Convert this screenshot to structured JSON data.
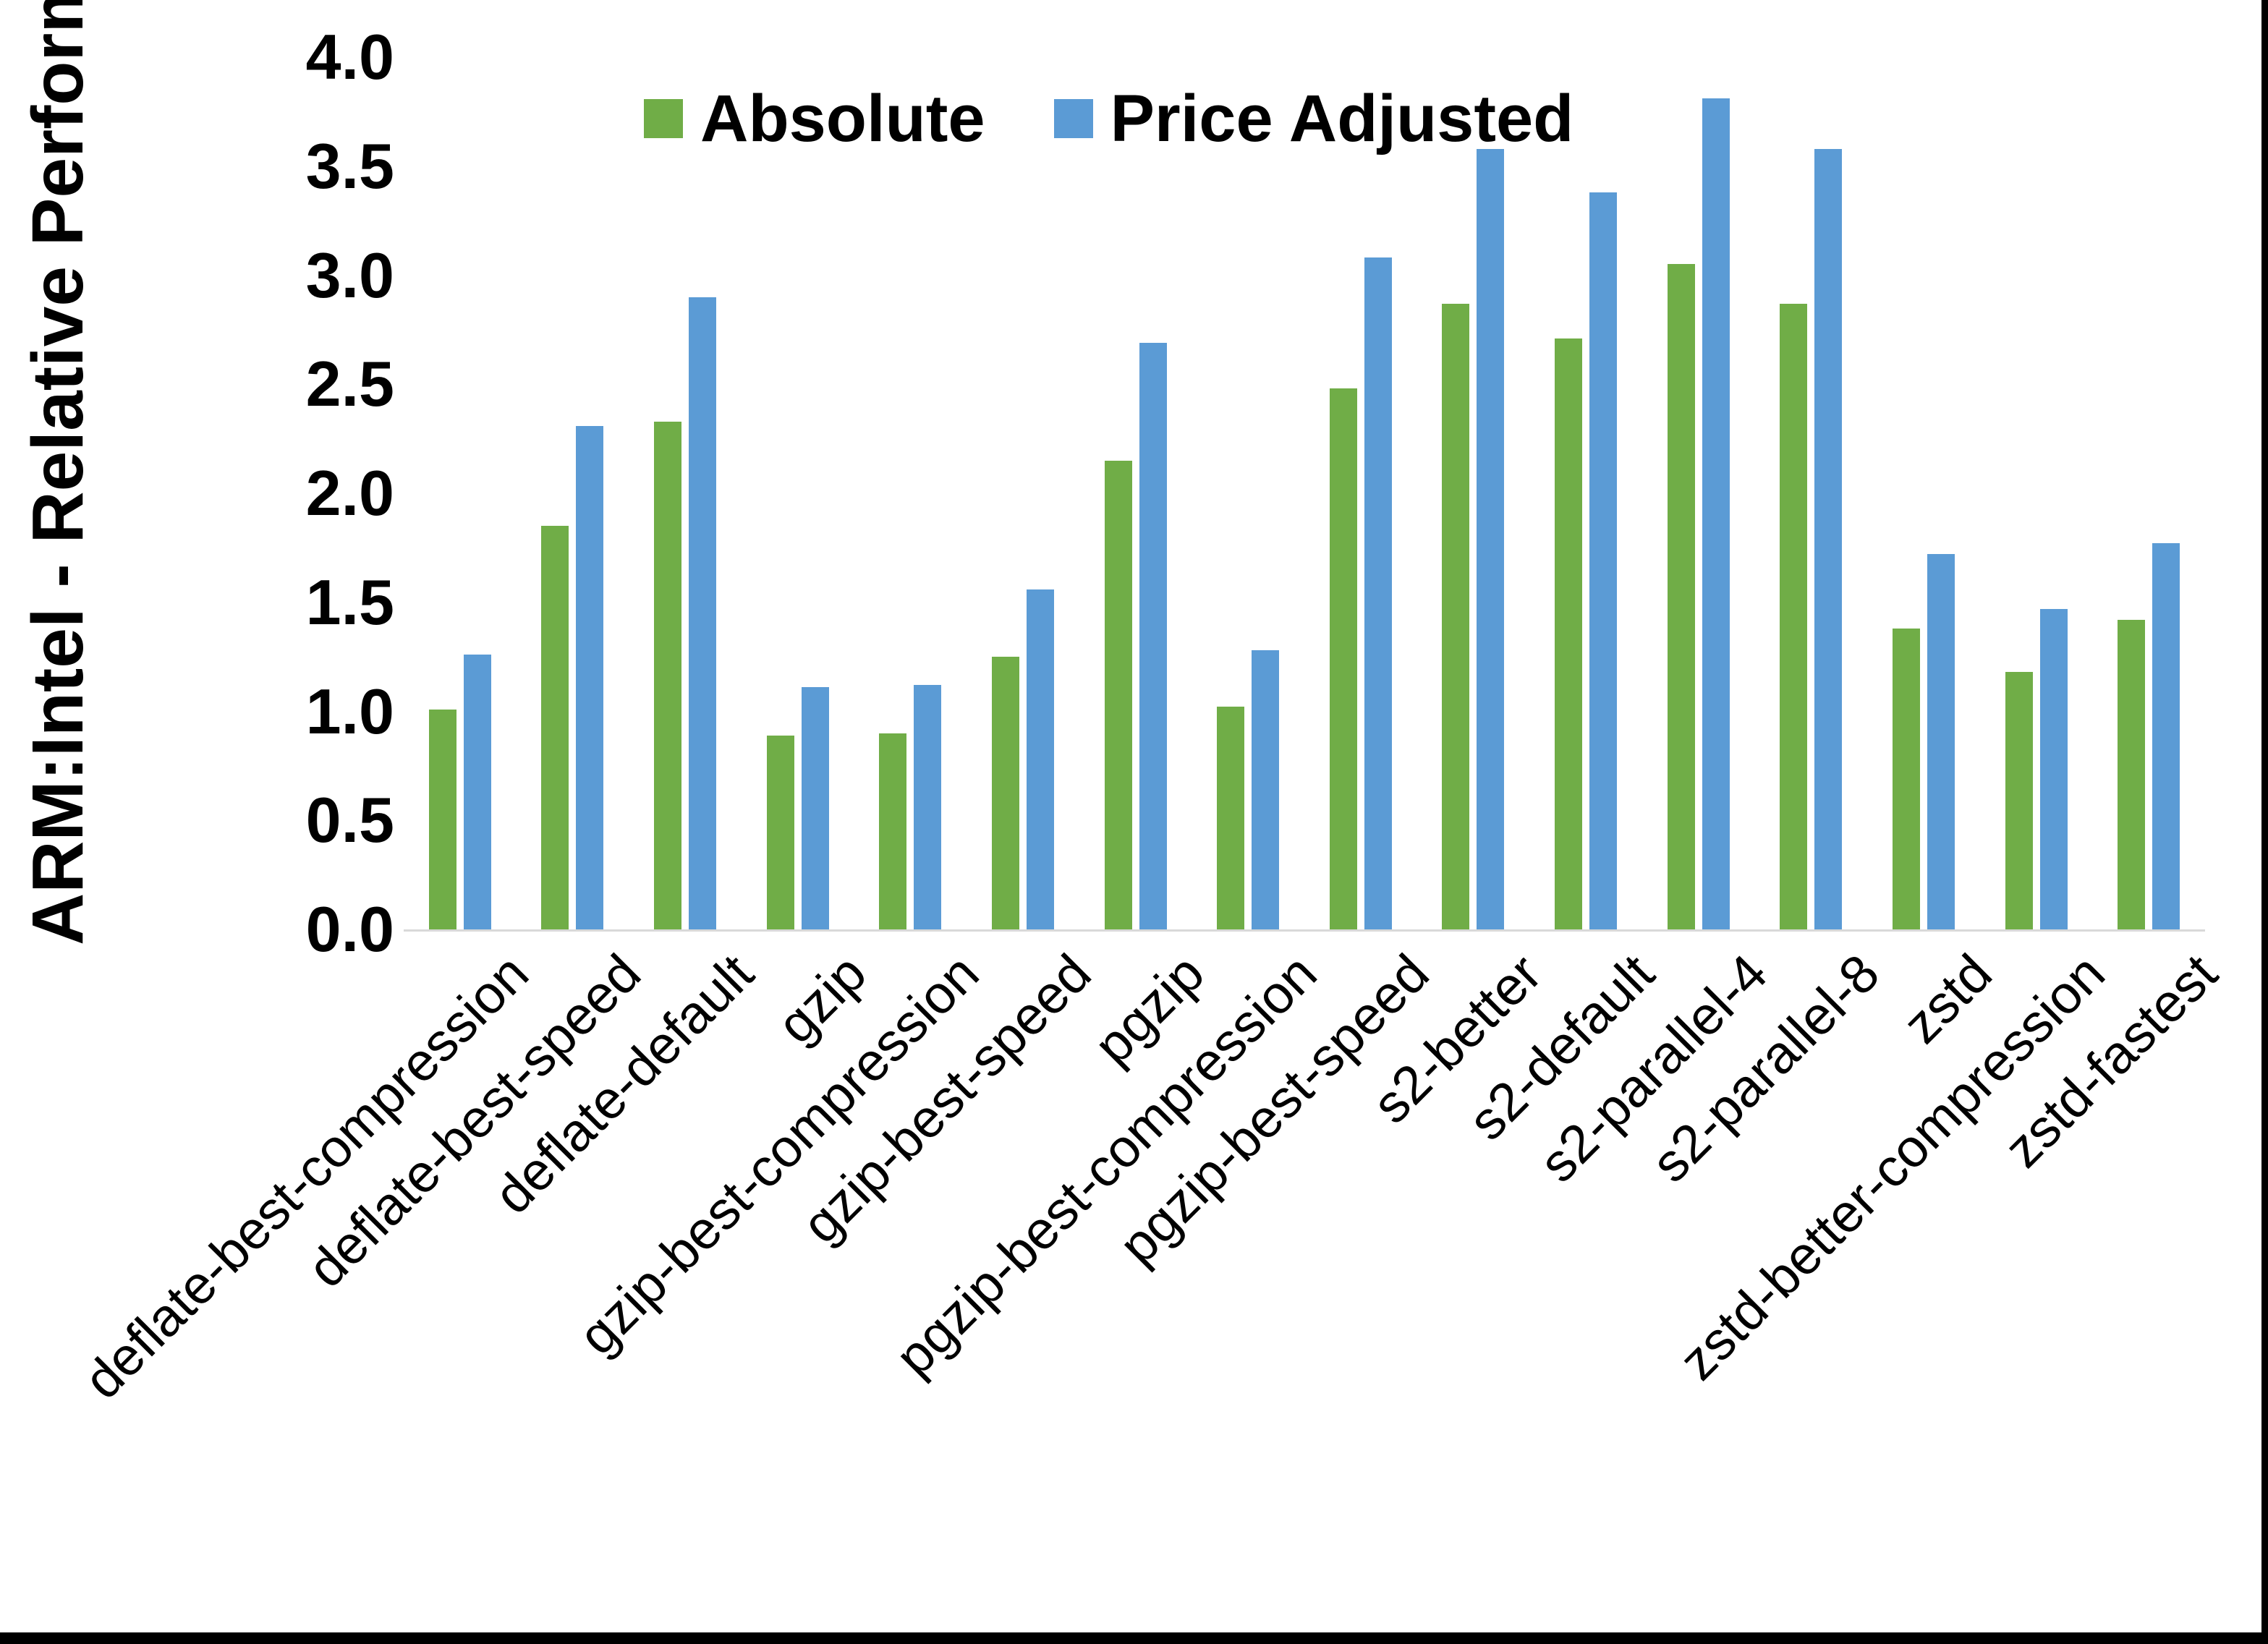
{
  "frame": {
    "background_color": "#ffffff",
    "border_color": "#000000"
  },
  "legend": {
    "position": "top-center",
    "items": [
      {
        "label": "Absolute",
        "color": "#70AD47"
      },
      {
        "label": "Price Adjusted",
        "color": "#5B9BD5"
      }
    ]
  },
  "y_axis": {
    "title": "ARM:Intel - Relative Performance",
    "tick_labels": [
      "0.0",
      "0.5",
      "1.0",
      "1.5",
      "2.0",
      "2.5",
      "3.0",
      "3.5",
      "4.0"
    ],
    "axis_line_color": "#d9d9d9",
    "min": 0,
    "max": 4
  },
  "chart_data": {
    "type": "bar",
    "title": "",
    "xlabel": "",
    "ylabel": "ARM:Intel - Relative Performance",
    "ylim": [
      0,
      4
    ],
    "y_ticks": [
      0,
      0.5,
      1,
      1.5,
      2,
      2.5,
      3,
      3.5,
      4
    ],
    "grid": false,
    "legend_position": "top-center",
    "categories": [
      "deflate-best-compression",
      "deflate-best-speed",
      "deflate-default",
      "gzip",
      "gzip-best-compression",
      "gzip-best-speed",
      "pgzip",
      "pgzip-best-compression",
      "pgzip-best-speed",
      "s2-better",
      "s2-default",
      "s2-parallel-4",
      "s2-parallel-8",
      "zstd",
      "zstd-better-compression",
      "zstd-fastest"
    ],
    "series": [
      {
        "name": "Absolute",
        "color": "#70AD47",
        "values": [
          1.01,
          1.85,
          2.33,
          0.89,
          0.9,
          1.25,
          2.15,
          1.02,
          2.48,
          2.87,
          2.71,
          3.05,
          2.87,
          1.38,
          1.18,
          1.42
        ]
      },
      {
        "name": "Price Adjusted",
        "color": "#5B9BD5",
        "values": [
          1.26,
          2.31,
          2.9,
          1.11,
          1.12,
          1.56,
          2.69,
          1.28,
          3.08,
          3.58,
          3.38,
          3.81,
          3.58,
          1.72,
          1.47,
          1.77
        ]
      }
    ]
  }
}
